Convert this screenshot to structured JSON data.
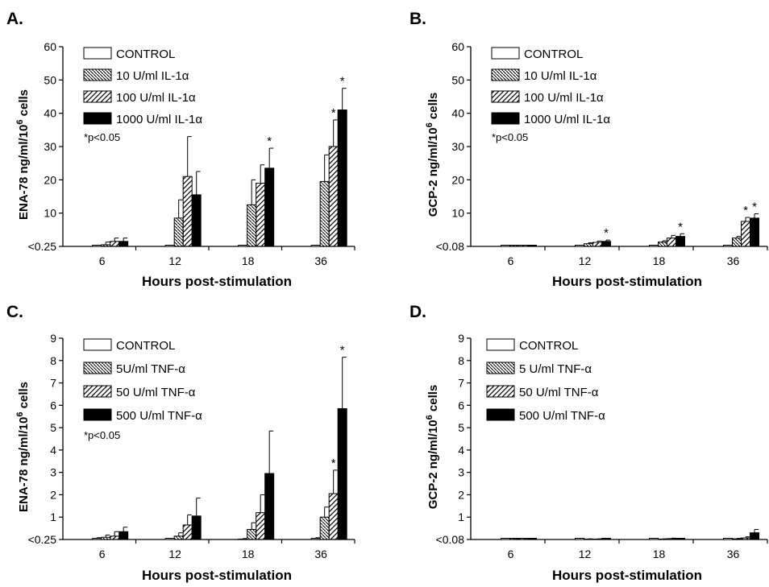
{
  "figure": {
    "panels": [
      {
        "letter": "A.",
        "ylabel": "ENA-78 ng/ml/10",
        "ylabel_sup": "6",
        "ylabel_suffix": " cells",
        "xlabel": "Hours post-stimulation",
        "yticks": [
          "<0.25",
          "10",
          "20",
          "30",
          "40",
          "50",
          "60"
        ],
        "note": "*p<0.05",
        "legend": [
          "CONTROL",
          "10 U/ml IL-1α",
          "100 U/ml IL-1α",
          "1000 U/ml IL-1α"
        ]
      },
      {
        "letter": "B.",
        "ylabel": "GCP-2 ng/ml/10",
        "ylabel_sup": "6",
        "ylabel_suffix": " cells",
        "xlabel": "Hours post-stimulation",
        "yticks": [
          "<0.08",
          "10",
          "20",
          "30",
          "40",
          "50",
          "60"
        ],
        "note": "*p<0.05",
        "legend": [
          "CONTROL",
          "10 U/ml IL-1α",
          "100 U/ml IL-1α",
          "1000 U/ml IL-1α"
        ]
      },
      {
        "letter": "C.",
        "ylabel": "ENA-78 ng/ml/10",
        "ylabel_sup": "6",
        "ylabel_suffix": " cells",
        "xlabel": "Hours post-stimulation",
        "yticks": [
          "<0.25",
          "1",
          "2",
          "3",
          "4",
          "5",
          "6",
          "7",
          "8",
          "9"
        ],
        "note": "*p<0.05",
        "legend": [
          "CONTROL",
          "5U/ml TNF-α",
          "50 U/ml TNF-α",
          "500 U/ml TNF-α"
        ]
      },
      {
        "letter": "D.",
        "ylabel": "GCP-2 ng/ml/10",
        "ylabel_sup": "6",
        "ylabel_suffix": " cells",
        "xlabel": "Hours post-stimulation",
        "yticks": [
          "<0.08",
          "1",
          "2",
          "3",
          "4",
          "5",
          "6",
          "7",
          "8",
          "9"
        ],
        "note": "",
        "legend": [
          "CONTROL",
          "5 U/ml TNF-α",
          "50 U/ml TNF-α",
          "500 U/ml TNF-α"
        ]
      }
    ]
  },
  "chart_data": [
    {
      "type": "bar",
      "title": "A.",
      "xlabel": "Hours post-stimulation",
      "ylabel": "ENA-78 ng/ml/10^6 cells",
      "ylim": [
        0,
        60
      ],
      "categories": [
        "6",
        "12",
        "18",
        "36"
      ],
      "series": [
        {
          "name": "CONTROL",
          "values": [
            0,
            0,
            0,
            0
          ],
          "errors": [
            0,
            0,
            0,
            0
          ],
          "pattern": "open"
        },
        {
          "name": "10 U/ml IL-1α",
          "values": [
            0.5,
            8.5,
            12.5,
            19.5
          ],
          "errors": [
            0.8,
            5.5,
            7.5,
            8.0
          ],
          "pattern": "dense-hatch"
        },
        {
          "name": "100 U/ml IL-1α",
          "values": [
            1.5,
            21,
            19,
            30
          ],
          "errors": [
            1.0,
            12,
            5.5,
            8.0
          ],
          "pattern": "hatch"
        },
        {
          "name": "1000 U/ml IL-1α",
          "values": [
            1.5,
            15.5,
            23.5,
            41
          ],
          "errors": [
            1.0,
            7.0,
            6.0,
            6.5
          ],
          "pattern": "solid"
        }
      ],
      "significant": [
        [
          3,
          2
        ],
        [
          3,
          3
        ],
        [
          2,
          3
        ],
        [
          3,
          4
        ]
      ],
      "significance_note": "*p<0.05",
      "legend_position": "top-left"
    },
    {
      "type": "bar",
      "title": "B.",
      "xlabel": "Hours post-stimulation",
      "ylabel": "GCP-2 ng/ml/10^6 cells",
      "ylim": [
        0,
        60
      ],
      "categories": [
        "6",
        "12",
        "18",
        "36"
      ],
      "series": [
        {
          "name": "CONTROL",
          "values": [
            0,
            0,
            0,
            0
          ],
          "errors": [
            0,
            0,
            0,
            0
          ],
          "pattern": "open"
        },
        {
          "name": "10 U/ml IL-1α",
          "values": [
            0,
            0.8,
            1.3,
            2.5
          ],
          "errors": [
            0,
            0.3,
            0.4,
            0.5
          ],
          "pattern": "dense-hatch"
        },
        {
          "name": "100 U/ml IL-1α",
          "values": [
            0,
            1.2,
            2.5,
            7.5
          ],
          "errors": [
            0,
            0.4,
            0.8,
            1.2
          ],
          "pattern": "hatch"
        },
        {
          "name": "1000 U/ml IL-1α",
          "values": [
            0,
            1.5,
            3.0,
            8.5
          ],
          "errors": [
            0,
            0.4,
            0.8,
            1.3
          ],
          "pattern": "solid"
        }
      ],
      "significant": [
        [
          1,
          3
        ],
        [
          2,
          3
        ],
        [
          3,
          2
        ],
        [
          3,
          3
        ]
      ],
      "significance_note": "*p<0.05",
      "legend_position": "top-left"
    },
    {
      "type": "bar",
      "title": "C.",
      "xlabel": "Hours post-stimulation",
      "ylabel": "ENA-78 ng/ml/10^6 cells",
      "ylim": [
        0,
        9
      ],
      "categories": [
        "6",
        "12",
        "18",
        "36"
      ],
      "series": [
        {
          "name": "CONTROL",
          "values": [
            0.05,
            0,
            0.02,
            0.05
          ],
          "errors": [
            0.03,
            0,
            0.02,
            0.03
          ],
          "pattern": "open"
        },
        {
          "name": "5U/ml TNF-α",
          "values": [
            0.1,
            0.15,
            0.45,
            1.0
          ],
          "errors": [
            0.1,
            0.15,
            0.3,
            0.45
          ],
          "pattern": "dense-hatch"
        },
        {
          "name": "50 U/ml TNF-α",
          "values": [
            0.15,
            0.65,
            1.2,
            2.05
          ],
          "errors": [
            0.2,
            0.45,
            0.8,
            1.05
          ],
          "pattern": "hatch"
        },
        {
          "name": "500 U/ml TNF-α",
          "values": [
            0.35,
            1.05,
            2.95,
            5.85
          ],
          "errors": [
            0.2,
            0.8,
            1.9,
            2.3
          ],
          "pattern": "solid"
        }
      ],
      "significant": [
        [
          3,
          2
        ],
        [
          3,
          3
        ]
      ],
      "significance_note": "*p<0.05",
      "legend_position": "top-left"
    },
    {
      "type": "bar",
      "title": "D.",
      "xlabel": "Hours post-stimulation",
      "ylabel": "GCP-2 ng/ml/10^6 cells",
      "ylim": [
        0,
        9
      ],
      "categories": [
        "6",
        "12",
        "18",
        "36"
      ],
      "series": [
        {
          "name": "CONTROL",
          "values": [
            0,
            0,
            0,
            0
          ],
          "errors": [
            0,
            0,
            0,
            0
          ],
          "pattern": "open"
        },
        {
          "name": "5 U/ml TNF-α",
          "values": [
            0,
            0.02,
            0.02,
            0.03
          ],
          "errors": [
            0.01,
            0.01,
            0.01,
            0.02
          ],
          "pattern": "dense-hatch"
        },
        {
          "name": "50 U/ml TNF-α",
          "values": [
            0,
            0.02,
            0.04,
            0.07
          ],
          "errors": [
            0.01,
            0.01,
            0.02,
            0.05
          ],
          "pattern": "hatch"
        },
        {
          "name": "500 U/ml TNF-α",
          "values": [
            0,
            0,
            0,
            0.3
          ],
          "errors": [
            0,
            0,
            0,
            0.15
          ],
          "pattern": "solid"
        }
      ],
      "significant": [],
      "legend_position": "top-left"
    }
  ]
}
